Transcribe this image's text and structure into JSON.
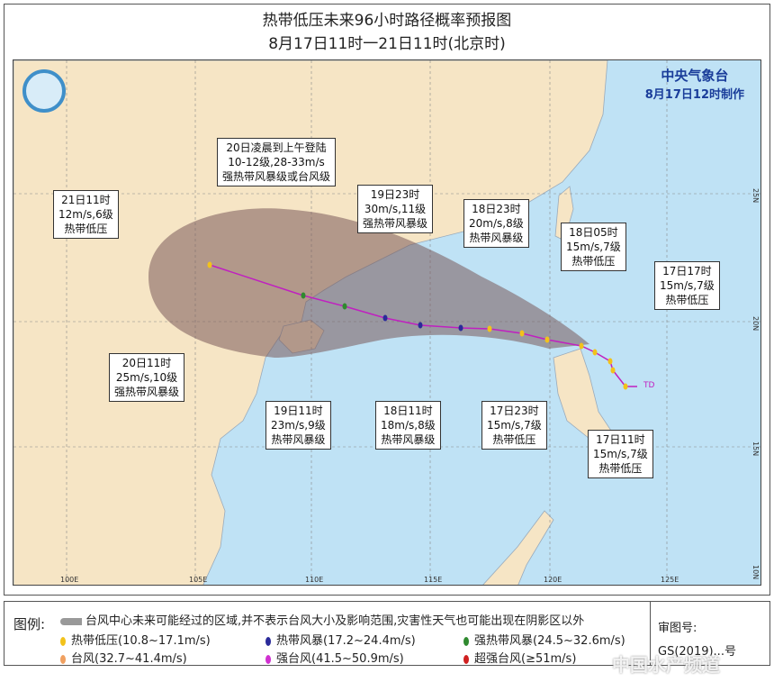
{
  "title": "热带低压未来96小时路径概率预报图",
  "subtitle": "8月17日11时一21日11时(北京时)",
  "agency": {
    "name": "中央气象台",
    "issued": "8月17日12时制作"
  },
  "lon_ticks": [
    "100E",
    "105E",
    "110E",
    "115E",
    "120E",
    "125E"
  ],
  "lat_ticks": [
    "25N",
    "20N",
    "15N",
    "10N"
  ],
  "td_marker": "TD",
  "labels": [
    {
      "time": "21日11时",
      "wind": "12m/s,6级",
      "level": "热带低压"
    },
    {
      "time": "20日凌晨到上午登陆",
      "wind": "10-12级,28-33m/s",
      "level": "强热带风暴级或台风级"
    },
    {
      "time": "19日23时",
      "wind": "30m/s,11级",
      "level": "强热带风暴级"
    },
    {
      "time": "18日23时",
      "wind": "20m/s,8级",
      "level": "热带风暴级"
    },
    {
      "time": "18日05时",
      "wind": "15m/s,7级",
      "level": "热带低压"
    },
    {
      "time": "17日17时",
      "wind": "15m/s,7级",
      "level": "热带低压"
    },
    {
      "time": "20日11时",
      "wind": "25m/s,10级",
      "level": "强热带风暴级"
    },
    {
      "time": "19日11时",
      "wind": "23m/s,9级",
      "level": "热带风暴级"
    },
    {
      "time": "18日11时",
      "wind": "18m/s,8级",
      "level": "热带风暴级"
    },
    {
      "time": "17日23时",
      "wind": "15m/s,7级",
      "level": "热带低压"
    },
    {
      "time": "17日11时",
      "wind": "15m/s,7级",
      "level": "热带低压"
    }
  ],
  "legend": {
    "heading": "图例:",
    "cone": "台风中心未来可能经过的区域,并不表示台风大小及影响范围,灾害性天气也可能出现在阴影区以外",
    "items": [
      {
        "label": "热带低压(10.8~17.1m/s)",
        "color": "#f2c21b"
      },
      {
        "label": "热带风暴(17.2~24.4m/s)",
        "color": "#2a2a9a"
      },
      {
        "label": "强热带风暴(24.5~32.6m/s)",
        "color": "#2f8a2f"
      },
      {
        "label": "台风(32.7~41.4m/s)",
        "color": "#f0a060"
      },
      {
        "label": "强台风(41.5~50.9m/s)",
        "color": "#d030d0"
      },
      {
        "label": "超强台风(≥51m/s)",
        "color": "#d02020"
      }
    ],
    "review": "审图号:",
    "review_no": "GS(2019)...号"
  },
  "watermark": "中国水产频道"
}
